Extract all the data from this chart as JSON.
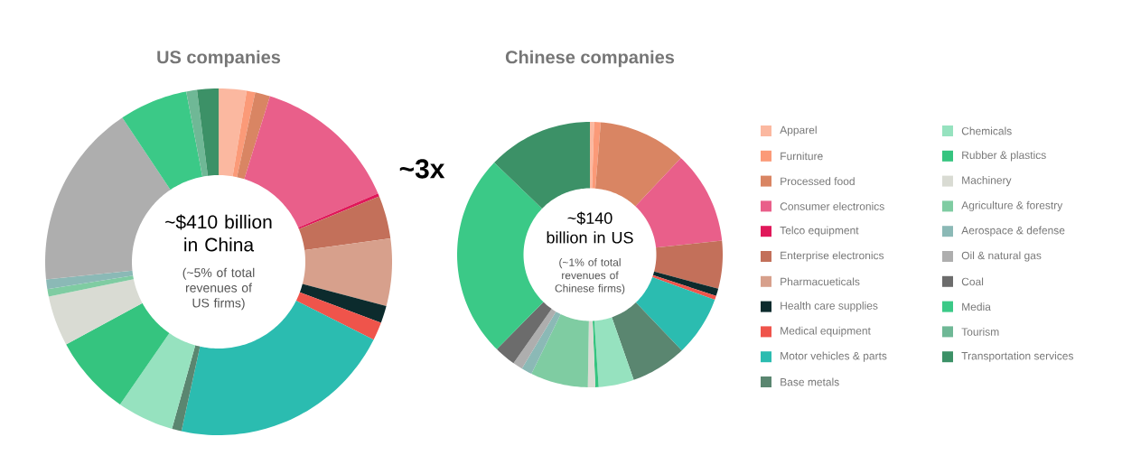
{
  "chart_data": [
    {
      "type": "donut",
      "title": "US companies",
      "categories": [
        null,
        null,
        null,
        null,
        null,
        null,
        null,
        null,
        null,
        null,
        null,
        null,
        null,
        null,
        null,
        null,
        null,
        null,
        null,
        null,
        null
      ],
      "values": [
        2.6,
        0.8,
        1.4,
        13.8,
        0.3,
        4.0,
        6.3,
        1.6,
        1.7,
        21.1,
        0.9,
        5.3,
        7.5,
        4.7,
        0.7,
        0.9,
        17.3,
        0,
        6.4,
        1.0,
        2.0
      ],
      "colors": [
        "#fbb8a0",
        "#fb9a78",
        "#d98563",
        "#e95f8a",
        "#e0185a",
        "#c3705a",
        "#d7a08c",
        "#0c2b2d",
        "#ef544b",
        "#2bbcb0",
        "#5a8670",
        "#96e2bf",
        "#35c47f",
        "#d9dbd3",
        "#7fcca2",
        "#8bb9b6",
        "#aeaeae",
        "#6c6c6c",
        "#3bc987",
        "#6fb896",
        "#3c9167"
      ],
      "annotations": [
        "~$410 billion in China",
        "(~5% of total revenues of US firms)"
      ]
    },
    {
      "type": "donut",
      "title": "Chinese companies",
      "legend": "right",
      "categories": [
        "Apparel",
        "Furniture",
        "Processed food",
        "Consumer electronics",
        "Telco equipment",
        "Enterprise electronics",
        "Pharmacueticals",
        "Health care supplies",
        "Medical equipment",
        "Motor vehicles & parts",
        "Base metals",
        "Chemicals",
        "Rubber & plastics",
        "Machinery",
        "Agriculture & forestry",
        "Aerospace & defense",
        "Oil & natural gas",
        "Coal",
        "Media",
        "Tourism",
        "Transportation services"
      ],
      "values": [
        0.5,
        0.8,
        10.7,
        11.3,
        0,
        5.8,
        0,
        0.9,
        0.5,
        7.3,
        6.8,
        4.3,
        0.4,
        0.9,
        7.0,
        1.3,
        1.2,
        2.6,
        24.8,
        0,
        12.8
      ],
      "colors": [
        "#fbb8a0",
        "#fb9a78",
        "#d98563",
        "#e95f8a",
        "#e0185a",
        "#c3705a",
        "#d7a08c",
        "#0c2b2d",
        "#ef544b",
        "#2bbcb0",
        "#5a8670",
        "#96e2bf",
        "#35c47f",
        "#d9dbd3",
        "#7fcca2",
        "#8bb9b6",
        "#aeaeae",
        "#6c6c6c",
        "#3bc987",
        "#6fb896",
        "#3c9167"
      ],
      "annotations": [
        "~$140 billion in US",
        "(~1% of total revenues of Chinese firms)",
        "~3x"
      ]
    }
  ]
}
